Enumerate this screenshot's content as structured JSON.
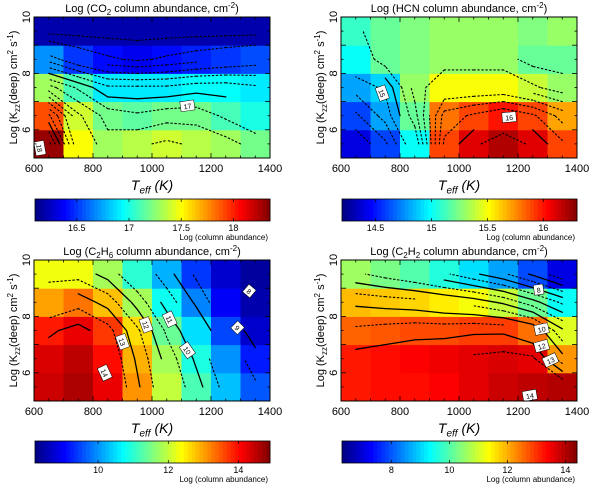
{
  "chart_data": [
    {
      "type": "heatmap",
      "title": "Log (CO2 column abundance, cm-2)",
      "title_parts": [
        "Log (CO",
        "2",
        " column abundance, cm",
        "-2",
        ")"
      ],
      "xlabel_parts": [
        "T",
        "eff",
        " (K)"
      ],
      "ylabel_parts": [
        "Log (K",
        "zz",
        "(deep) cm",
        "2",
        " s",
        "-1",
        ")"
      ],
      "xlim": [
        600,
        1400
      ],
      "ylim": [
        5,
        10
      ],
      "x_ticks": [
        "600",
        "800",
        "1000",
        "1200",
        "1400"
      ],
      "y_ticks": [
        "6",
        "8",
        "10"
      ],
      "x_cells": [
        600,
        700,
        800,
        900,
        1000,
        1100,
        1200,
        1300
      ],
      "y_cells": [
        5,
        6,
        7,
        8,
        9
      ],
      "values": [
        [
          18.3,
          17.5,
          17.3,
          17.35,
          17.4,
          17.35,
          17.3,
          17.2
        ],
        [
          17.9,
          17.4,
          17.2,
          17.15,
          17.2,
          17.2,
          17.1,
          17.0
        ],
        [
          17.3,
          17.1,
          16.9,
          16.9,
          16.9,
          16.95,
          16.95,
          16.9
        ],
        [
          16.7,
          16.5,
          16.4,
          16.35,
          16.4,
          16.45,
          16.5,
          16.55
        ],
        [
          16.2,
          16.2,
          16.2,
          16.2,
          16.2,
          16.2,
          16.2,
          16.2
        ]
      ],
      "colorbar": {
        "min": 16.1,
        "max": 18.35,
        "ticks": [
          "16.5",
          "17",
          "17.5",
          "18"
        ],
        "label": "Log (column abundance)"
      },
      "contour_labels": [
        "17",
        "18"
      ]
    },
    {
      "type": "heatmap",
      "title": "Log (HCN column abundance, cm-2)",
      "title_parts": [
        "Log (HCN column abundance, cm",
        "-2",
        ")"
      ],
      "xlabel_parts": [
        "T",
        "eff",
        " (K)"
      ],
      "ylabel_parts": [
        "Log (K",
        "zz",
        "(deep) cm",
        "2",
        " s",
        "-1",
        ")"
      ],
      "xlim": [
        600,
        1400
      ],
      "ylim": [
        5,
        10
      ],
      "x_ticks": [
        "600",
        "800",
        "1000",
        "1200",
        "1400"
      ],
      "y_ticks": [
        "6",
        "8",
        "10"
      ],
      "x_cells": [
        600,
        700,
        800,
        900,
        1000,
        1100,
        1200,
        1300
      ],
      "y_cells": [
        5,
        6,
        7,
        8,
        9
      ],
      "values": [
        [
          14.4,
          14.6,
          15.0,
          15.9,
          16.1,
          16.2,
          16.1,
          15.9
        ],
        [
          14.6,
          14.8,
          15.2,
          15.8,
          15.9,
          16.0,
          15.9,
          15.7
        ],
        [
          14.8,
          14.9,
          15.3,
          15.5,
          15.5,
          15.5,
          15.4,
          15.3
        ],
        [
          15.0,
          15.2,
          15.25,
          15.3,
          15.3,
          15.3,
          15.2,
          15.2
        ],
        [
          15.1,
          15.2,
          15.25,
          15.3,
          15.3,
          15.3,
          15.25,
          15.3
        ]
      ],
      "colorbar": {
        "min": 14.2,
        "max": 16.3,
        "ticks": [
          "14.5",
          "15",
          "15.5",
          "16"
        ],
        "label": "Log (column abundance)"
      },
      "contour_labels": [
        "15",
        "16"
      ]
    },
    {
      "type": "heatmap",
      "title": "Log (C2H6 column abundance, cm-2)",
      "title_parts": [
        "Log (C",
        "2",
        "H",
        "6",
        " column abundance, cm",
        "-2",
        ")"
      ],
      "xlabel_parts": [
        "T",
        "eff",
        " (K)"
      ],
      "ylabel_parts": [
        "Log (K",
        "zz",
        "(deep) cm",
        "2",
        " s",
        "-1",
        ")"
      ],
      "xlim": [
        600,
        1400
      ],
      "ylim": [
        5,
        10
      ],
      "x_ticks": [
        "600",
        "800",
        "1000",
        "1200",
        "1400"
      ],
      "y_ticks": [
        "6",
        "8",
        "10"
      ],
      "x_cells": [
        600,
        700,
        800,
        900,
        1000,
        1100,
        1200,
        1300
      ],
      "y_cells": [
        5,
        6,
        7,
        8,
        9
      ],
      "values": [
        [
          14.4,
          14.6,
          14.2,
          13.1,
          12.0,
          11.2,
          10.3,
          9.6
        ],
        [
          14.3,
          14.5,
          14.0,
          12.9,
          11.8,
          10.9,
          10.0,
          9.2
        ],
        [
          13.9,
          14.2,
          13.7,
          12.6,
          11.4,
          10.5,
          9.5,
          8.7
        ],
        [
          13.0,
          13.3,
          12.8,
          11.8,
          10.8,
          9.9,
          9.0,
          8.5
        ],
        [
          12.3,
          12.3,
          11.8,
          11.0,
          10.2,
          9.4,
          8.7,
          8.4
        ]
      ],
      "colorbar": {
        "min": 8.2,
        "max": 14.9,
        "ticks": [
          "10",
          "12",
          "14"
        ],
        "label": "Log (column abundance)"
      },
      "contour_labels": [
        "14",
        "13",
        "12",
        "11",
        "10",
        "9",
        "8"
      ]
    },
    {
      "type": "heatmap",
      "title": "Log (C2H2 column abundance, cm-2)",
      "title_parts": [
        "Log (C",
        "2",
        "H",
        "2",
        " column abundance, cm",
        "-2",
        ")"
      ],
      "xlabel_parts": [
        "T",
        "eff",
        " (K)"
      ],
      "ylabel_parts": [
        "Log (K",
        "zz",
        "(deep) cm",
        "2",
        " s",
        "-1",
        ")"
      ],
      "xlim": [
        600,
        1400
      ],
      "ylim": [
        5,
        10
      ],
      "x_ticks": [
        "600",
        "800",
        "1000",
        "1200",
        "1400"
      ],
      "y_ticks": [
        "6",
        "8",
        "10"
      ],
      "x_cells": [
        600,
        700,
        800,
        900,
        1000,
        1100,
        1200,
        1300
      ],
      "y_cells": [
        5,
        6,
        7,
        8,
        9
      ],
      "values": [
        [
          13.2,
          13.3,
          13.3,
          13.4,
          13.6,
          13.8,
          13.9,
          14.0
        ],
        [
          13.2,
          13.3,
          13.4,
          13.5,
          13.6,
          13.7,
          13.6,
          12.2
        ],
        [
          12.6,
          12.7,
          12.8,
          12.8,
          12.9,
          12.9,
          12.5,
          11.1
        ],
        [
          11.9,
          11.8,
          11.7,
          11.5,
          11.3,
          10.9,
          10.2,
          9.4
        ],
        [
          10.6,
          10.3,
          10.0,
          9.6,
          9.1,
          8.6,
          7.9,
          7.1
        ]
      ],
      "colorbar": {
        "min": 6.3,
        "max": 14.4,
        "ticks": [
          "8",
          "10",
          "12",
          "14"
        ],
        "label": "Log (column abundance)"
      },
      "contour_labels": [
        "8",
        "10",
        "12",
        "13",
        "14"
      ]
    }
  ]
}
